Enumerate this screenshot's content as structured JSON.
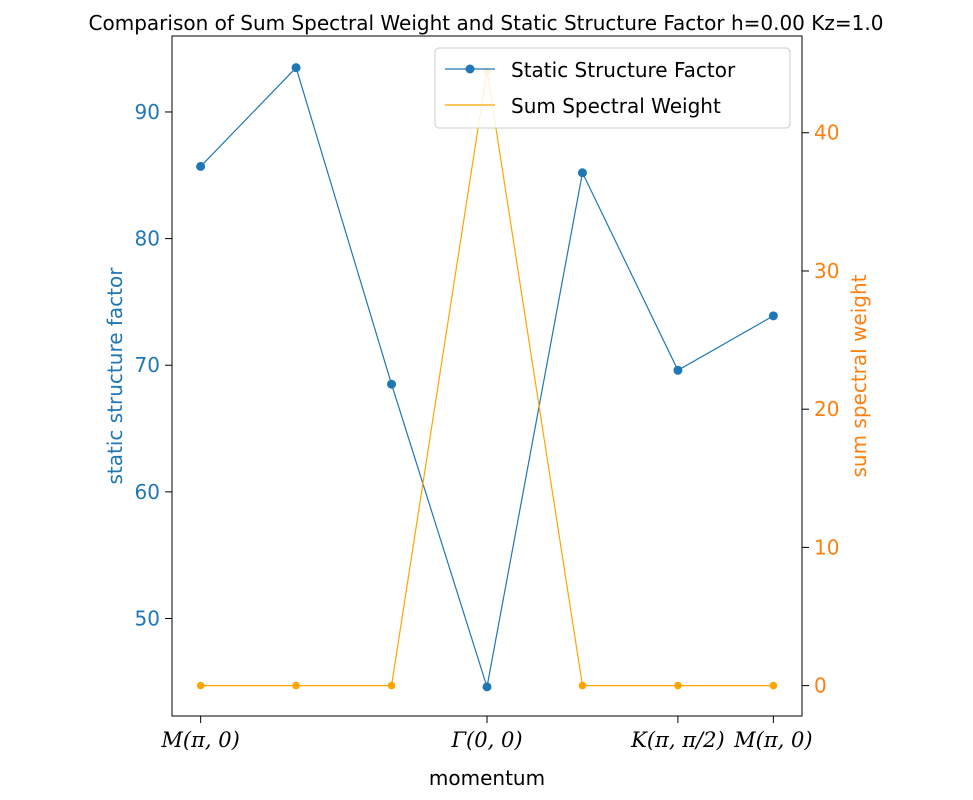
{
  "chart_data": {
    "type": "line",
    "title": "Comparison of Sum Spectral Weight and Static Structure Factor h=0.00 Kz=1.0",
    "xlabel": "momentum",
    "ylabel_left": "static structure factor",
    "ylabel_right": "sum spectral weight",
    "x": [
      0,
      1,
      2,
      3,
      4,
      5,
      6
    ],
    "xticks": [
      {
        "x": 0,
        "label": "M(π, 0)"
      },
      {
        "x": 3,
        "label": "Γ(0, 0)"
      },
      {
        "x": 5,
        "label": "K(π, π/2)"
      },
      {
        "x": 6,
        "label": "M(π, 0)"
      }
    ],
    "xlim": [
      -0.3,
      6.3
    ],
    "ylim_left": [
      42.3,
      96.0
    ],
    "ylim_right": [
      -2.2,
      47.0
    ],
    "yticks_left": [
      50,
      60,
      70,
      80,
      90
    ],
    "yticks_right": [
      0,
      10,
      20,
      30,
      40
    ],
    "grid": false,
    "legend_position": "top-right",
    "series": [
      {
        "name": "Static Structure Factor",
        "axis": "left",
        "color": "#1f77b4",
        "marker": "circle",
        "values": [
          85.7,
          93.5,
          68.5,
          44.6,
          85.2,
          69.6,
          73.9
        ]
      },
      {
        "name": "Sum Spectral Weight",
        "axis": "right",
        "color": "#ffa500",
        "marker": "circle",
        "values": [
          0.0,
          0.0,
          0.0,
          44.5,
          0.0,
          0.0,
          0.0
        ]
      }
    ],
    "colors": {
      "left_axis": "#1f77b4",
      "right_axis": "#ff7f0e"
    }
  }
}
